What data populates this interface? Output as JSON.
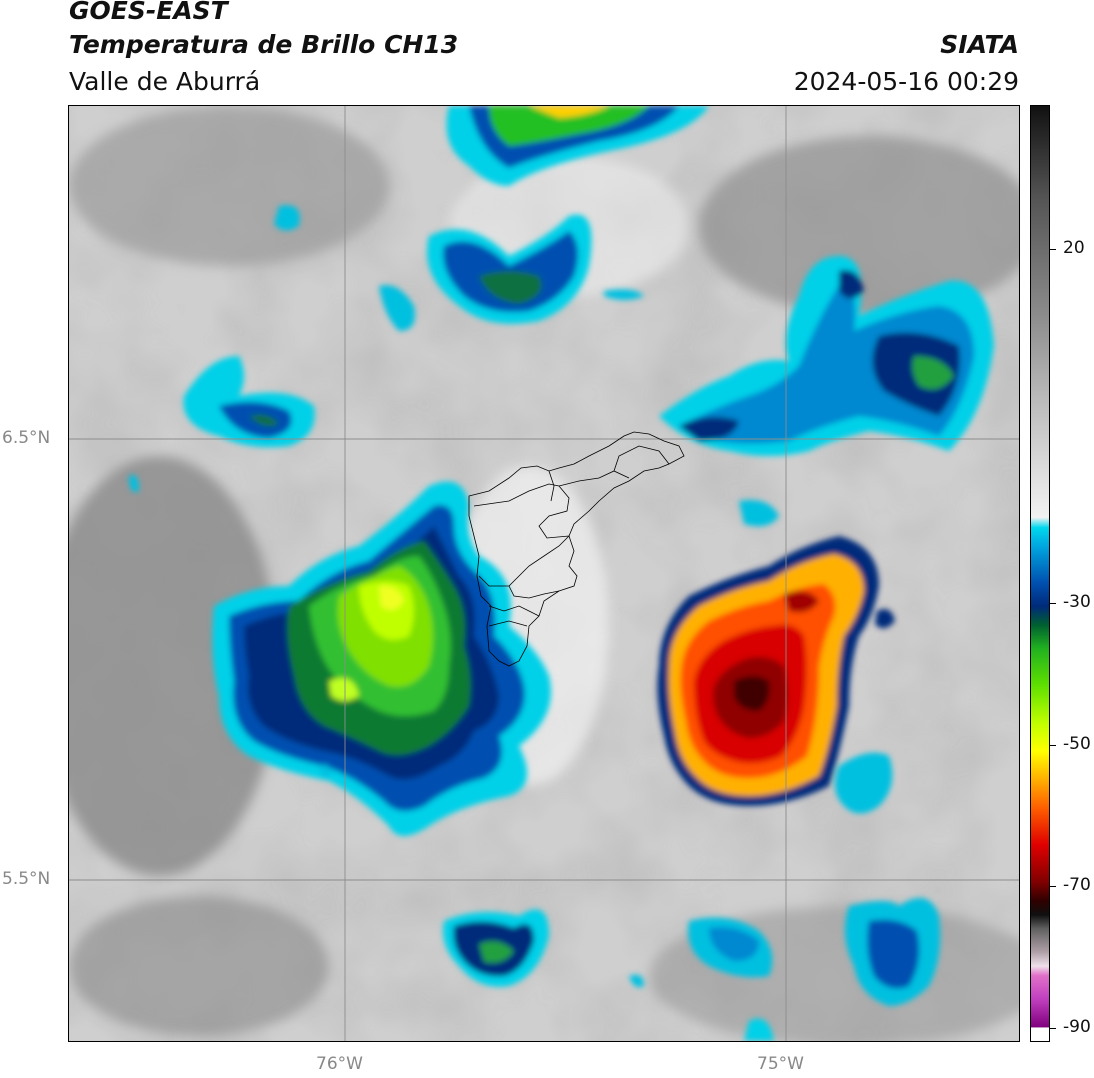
{
  "header": {
    "satellite": "GOES-EAST",
    "product": "Temperatura de Brillo CH13",
    "region": "Valle de Aburrá",
    "agency": "SIATA",
    "datetime": "2024-05-16 00:29"
  },
  "map": {
    "lat_labels": [
      "6.5°N",
      "5.5°N"
    ],
    "lon_labels": [
      "76°W",
      "75°W"
    ],
    "gridline_color": "#8c8c8c",
    "boundary_color": "#000000",
    "background_color": "#d6d6d6"
  },
  "colorbar": {
    "ticks": [
      "20",
      "-30",
      "-50",
      "-70",
      "-90"
    ],
    "range": [
      -92,
      36
    ],
    "colors": {
      "warm_gray": "#7a7a7a",
      "light_gray": "#f0f0f0",
      "cyan": "#00d0e8",
      "blue": "#0050b0",
      "navy": "#002a7a",
      "green": "#20c020",
      "lime": "#a0ff00",
      "yellow": "#ffff00",
      "orange": "#ff8000",
      "red": "#e00000",
      "dark_red": "#600000",
      "black": "#101010",
      "magenta": "#c040c0",
      "purple": "#800080"
    }
  }
}
